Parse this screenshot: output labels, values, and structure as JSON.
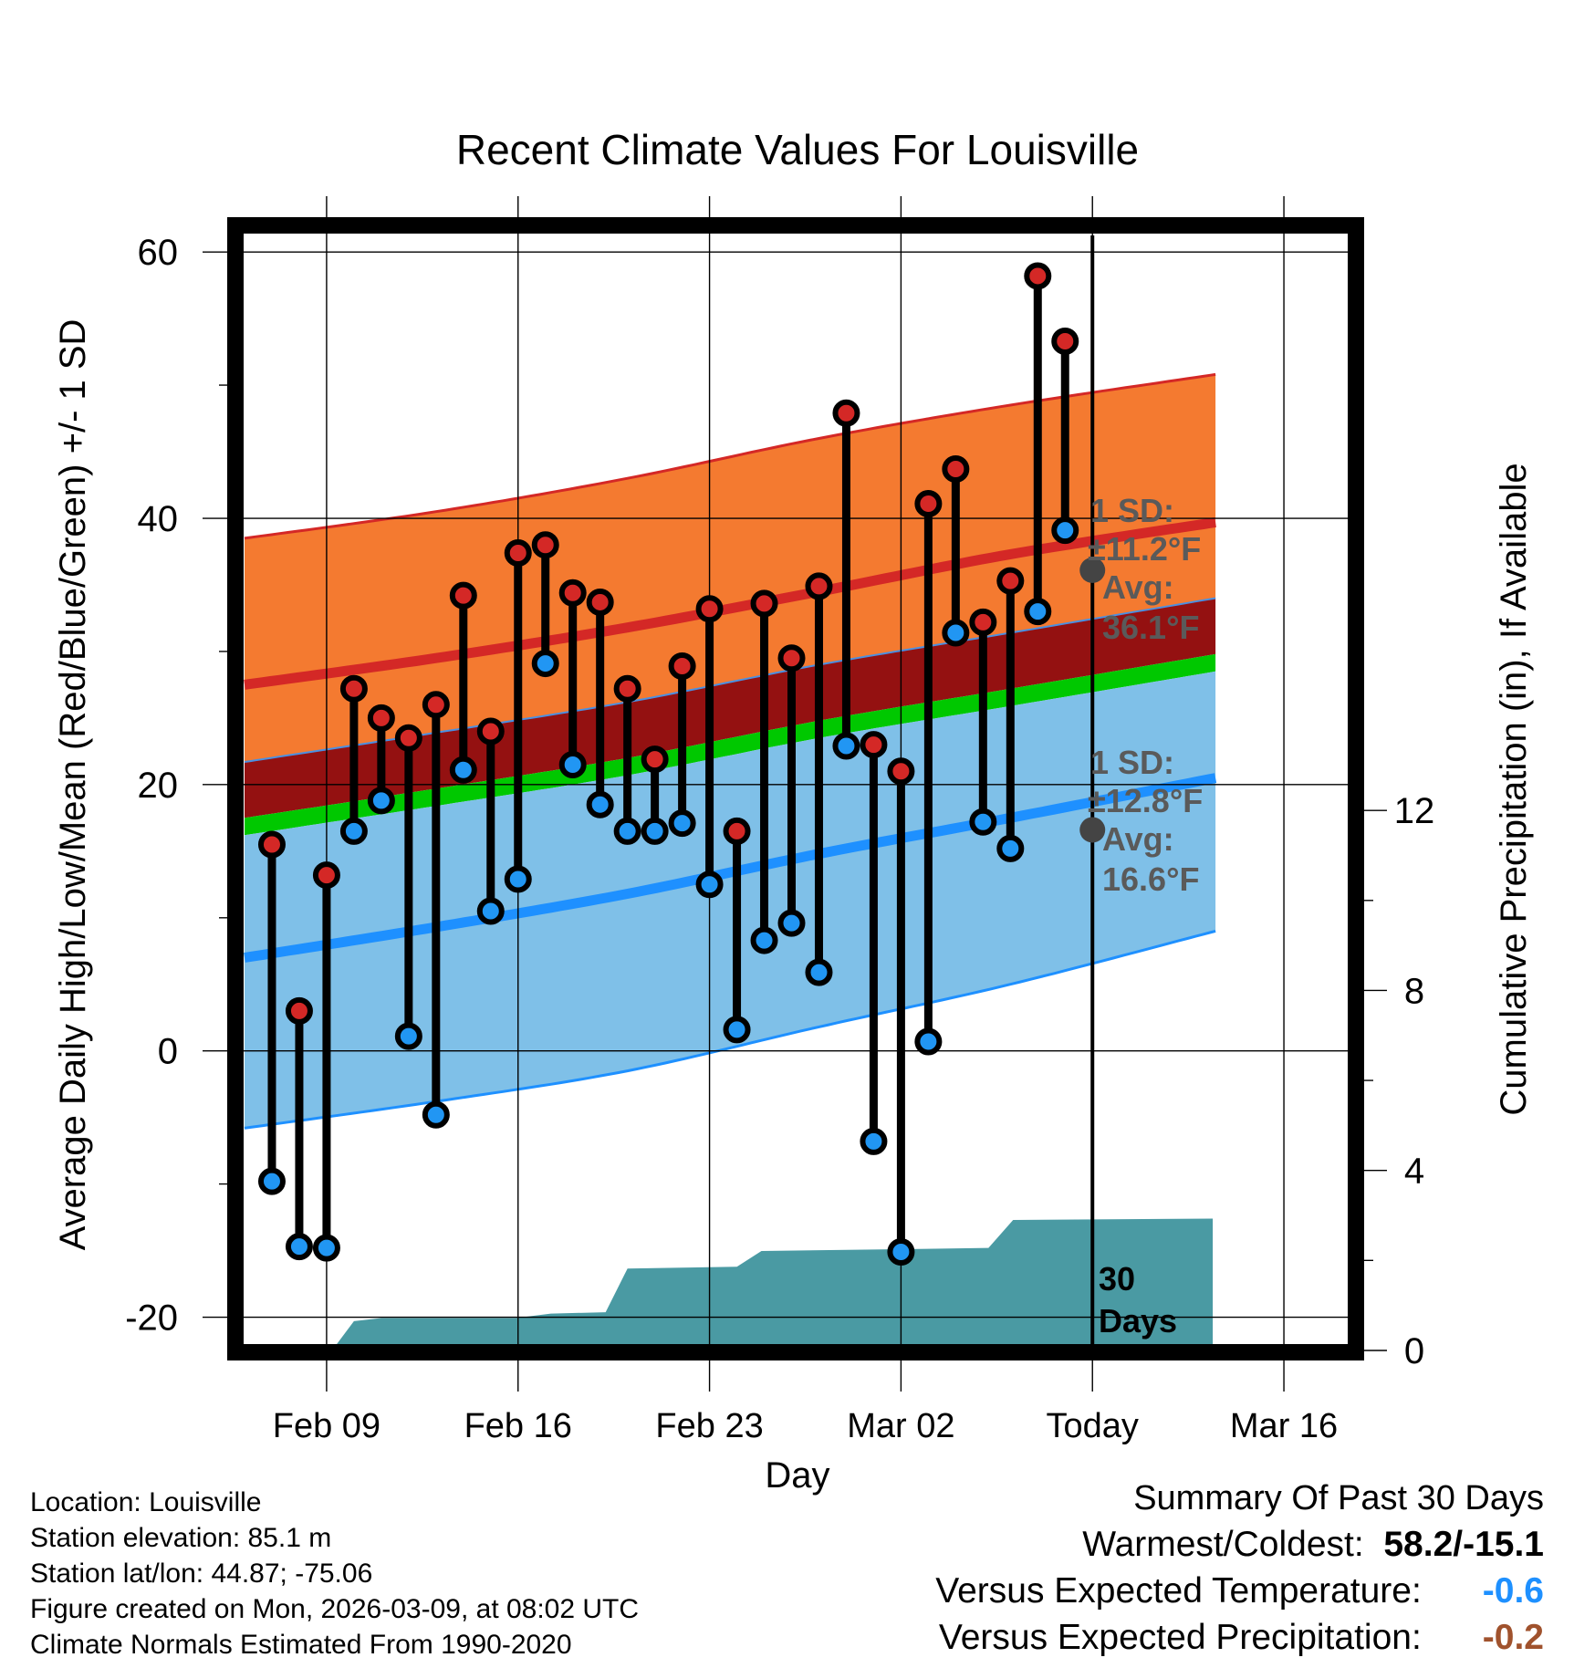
{
  "title": "Recent Climate Values For Louisville",
  "chart_data": {
    "type": "line",
    "title": "Recent Climate Values For Louisville",
    "xlabel": "Day",
    "ylabel_left": "Average Daily High/Low/Mean (Red/Blue/Green) +/- 1 SD",
    "ylabel_right": "Cumulative Precipitation (in), If Available",
    "ylim": [
      -22.5,
      62
    ],
    "y2lim": [
      0,
      25
    ],
    "xlim": [
      -3.2,
      37.5
    ],
    "x_ticks": [
      {
        "x": 0,
        "label": "Feb 09"
      },
      {
        "x": 7,
        "label": "Feb 16"
      },
      {
        "x": 14,
        "label": "Feb 23"
      },
      {
        "x": 21,
        "label": "Mar 02"
      },
      {
        "x": 28,
        "label": "Today"
      },
      {
        "x": 35,
        "label": "Mar 16"
      }
    ],
    "y_ticks": [
      -20,
      0,
      20,
      40,
      60
    ],
    "y2_ticks": [
      0,
      4,
      8,
      12
    ],
    "today_x": 28,
    "daily_high": [
      15.5,
      3.0,
      13.2,
      27.2,
      25.0,
      23.5,
      26.0,
      34.2,
      24.0,
      37.4,
      38.0,
      34.4,
      33.7,
      27.2,
      21.9,
      28.9,
      33.2,
      16.5,
      33.6,
      29.5,
      34.9,
      47.9,
      23.0,
      21.0,
      41.1,
      43.7,
      32.2,
      35.3,
      58.2,
      53.3
    ],
    "daily_low": [
      -9.8,
      -14.7,
      -14.8,
      16.5,
      18.8,
      1.1,
      -4.8,
      21.1,
      10.5,
      12.9,
      29.1,
      21.5,
      18.5,
      16.5,
      16.5,
      17.1,
      12.5,
      1.6,
      8.3,
      9.6,
      5.9,
      22.9,
      -6.8,
      -15.1,
      0.7,
      31.4,
      17.2,
      15.2,
      33.0,
      39.1
    ],
    "normal_high_upper": [
      38.5,
      40.5,
      43.0,
      46.0,
      48.5,
      50.8
    ],
    "normal_high_avg": [
      27.5,
      29.5,
      31.8,
      34.5,
      37.3,
      39.7
    ],
    "normal_low_avg": [
      7.0,
      9.3,
      11.8,
      14.8,
      17.5,
      20.5
    ],
    "normal_low_lower": [
      -5.8,
      -3.8,
      -1.5,
      1.8,
      5.0,
      9.0
    ],
    "normal_mean": [
      17.5,
      19.7,
      22.0,
      24.8,
      27.2,
      29.8
    ],
    "normal_band_x": [
      -3,
      4,
      11,
      18,
      25,
      32.5
    ],
    "precip_cumulative": [
      {
        "x": 0.2,
        "y": 0.0
      },
      {
        "x": 1.0,
        "y": 0.65
      },
      {
        "x": 2.0,
        "y": 0.72
      },
      {
        "x": 6.9,
        "y": 0.72
      },
      {
        "x": 8.2,
        "y": 0.82
      },
      {
        "x": 10.2,
        "y": 0.85
      },
      {
        "x": 11.0,
        "y": 1.82
      },
      {
        "x": 15.0,
        "y": 1.86
      },
      {
        "x": 15.9,
        "y": 2.21
      },
      {
        "x": 21.0,
        "y": 2.25
      },
      {
        "x": 24.2,
        "y": 2.28
      },
      {
        "x": 25.1,
        "y": 2.9
      },
      {
        "x": 32.4,
        "y": 2.93
      }
    ],
    "high_sd_label": "1 SD:",
    "high_sd_value": "±11.2°F",
    "high_avg_label": "Avg:",
    "high_avg_value": "36.1°F",
    "high_avg": 36.1,
    "low_sd_label": "1 SD:",
    "low_sd_value": "±12.8°F",
    "low_avg_label": "Avg:",
    "low_avg_value": "16.6°F",
    "low_avg": 16.6,
    "precip_total_label": "30 Days",
    "colors": {
      "high_band": "#f47a30",
      "high_line": "#d42826",
      "mean_band_dark": "#941111",
      "mean_line": "#00c800",
      "low_band": "#7fc0e8",
      "low_line": "#1e90ff",
      "precip": "#4a9aa3",
      "high_dot": "#d42826",
      "low_dot": "#2196f3",
      "annot": "#5a5a5a"
    }
  },
  "footer": {
    "location": "Location: Louisville",
    "elevation": "Station elevation: 85.1 m",
    "latlon": "Station lat/lon: 44.87; -75.06",
    "created": "Figure created on Mon, 2026-03-09, at 08:02 UTC",
    "normals": "Climate Normals Estimated From 1990-2020"
  },
  "summary": {
    "title": "Summary Of Past 30 Days",
    "warm_cold_label": "Warmest/Coldest:",
    "warm_cold_value": "58.2/-15.1",
    "temp_label": "Versus Expected Temperature:",
    "temp_value": "-0.6",
    "temp_color": "#1e90ff",
    "precip_label": "Versus Expected Precipitation:",
    "precip_value": "-0.2",
    "precip_color": "#a0522d"
  }
}
